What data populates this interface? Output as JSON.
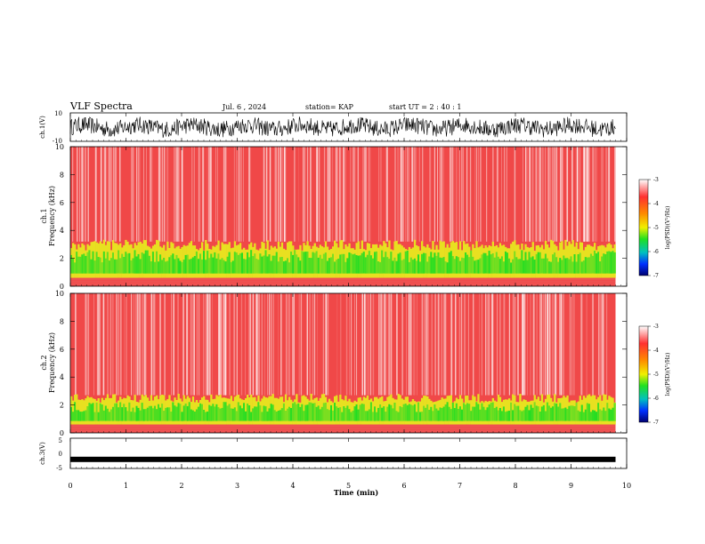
{
  "header": {
    "title": "VLF Spectra",
    "date": "Jul. 6 , 2024",
    "station": "station= KAP",
    "start": "start UT = 2 : 40 : 1"
  },
  "chart_data": [
    {
      "type": "line",
      "name": "ch.1 waveform",
      "ylabel": "ch.1(V)",
      "ylim": [
        -10,
        10
      ],
      "yticks": [
        "10",
        "-10"
      ],
      "xlim": [
        0,
        10
      ],
      "description_values": {
        "approx_center": 0,
        "approx_amplitude": 6
      }
    },
    {
      "type": "heatmap",
      "name": "ch.1 spectrogram",
      "ylabel": "ch.1\nFrequency (kHz)",
      "ylabel_line1": "ch.1",
      "ylabel_line2": "Frequency (kHz)",
      "ylim": [
        0,
        10
      ],
      "yticks": [
        "0",
        "2",
        "4",
        "6",
        "8",
        "10"
      ],
      "xlim": [
        0,
        9.8
      ],
      "band_top_khz": 3.2,
      "colorbar": {
        "label": "log(PSD)(V²/Hz)",
        "range": [
          -7,
          -3
        ],
        "ticks": [
          "-3",
          "-4",
          "-5",
          "-6",
          "-7"
        ]
      }
    },
    {
      "type": "heatmap",
      "name": "ch.2 spectrogram",
      "ylabel_line1": "ch.2",
      "ylabel_line2": "Frequency (kHz)",
      "ylim": [
        0,
        10
      ],
      "yticks": [
        "0",
        "2",
        "4",
        "6",
        "8",
        "10"
      ],
      "xlim": [
        0,
        9.8
      ],
      "band_top_khz": 2.7,
      "colorbar": {
        "label": "log(PSD)(V²/Hz)",
        "range": [
          -7,
          -3
        ],
        "ticks": [
          "-3",
          "-4",
          "-5",
          "-6",
          "-7"
        ]
      }
    },
    {
      "type": "line",
      "name": "ch.3 waveform",
      "ylabel": "ch.3(V)",
      "ylim": [
        -5,
        5
      ],
      "yticks": [
        "5",
        "0",
        "-5"
      ],
      "approx_value": -2,
      "xlim": [
        0,
        10
      ]
    }
  ],
  "xaxis": {
    "label": "Time (min)",
    "range": [
      0,
      10
    ],
    "ticks": [
      "0",
      "1",
      "2",
      "3",
      "4",
      "5",
      "6",
      "7",
      "8",
      "9",
      "10"
    ]
  },
  "colors": {
    "spectrogram_background": "#f04848",
    "band_green": "#22dd22",
    "band_yellow": "#e8e020",
    "line": "#000000"
  }
}
